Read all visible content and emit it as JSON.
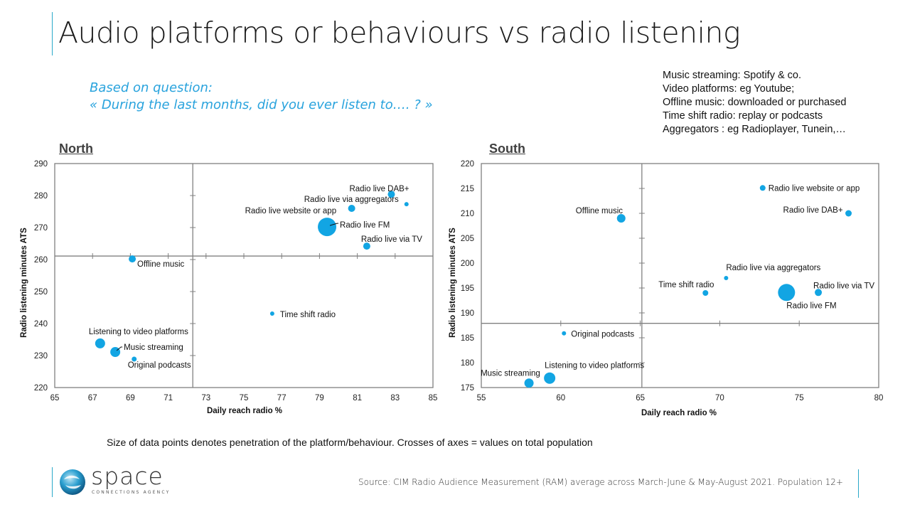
{
  "slide": {
    "title": "Audio platforms or behaviours vs radio listening",
    "subtitle": [
      "Based on question:",
      "« During the last months, did you ever listen to…. ? »"
    ],
    "definitions": [
      "Music streaming: Spotify & co.",
      "Video platforms:  eg Youtube;",
      "Offline music:  downloaded or purchased",
      "Time shift radio:  replay or podcasts",
      "Aggregators : eg Radioplayer, Tunein,…"
    ],
    "footnote": "Size of data points denotes penetration of the platform/behaviour.  Crosses of axes = values on total population",
    "source": "Source: CIM Radio  Audience Measurement  (RAM)  average across March-June  & May-August  2021. Population 12+",
    "logo": {
      "word": "space",
      "tagline": "CONNECTIONS AGENCY"
    },
    "colors": {
      "accent": "#2aa9c9",
      "marker": "#12a5e3",
      "subtitle": "#29a3dd",
      "axis": "#808080"
    }
  },
  "chart_data": [
    {
      "type": "scatter",
      "title": "North",
      "xlabel": "Daily  reach radio %",
      "ylabel": "Radio  listening  minutes  ATS",
      "xlim": [
        65,
        85
      ],
      "ylim": [
        220,
        290
      ],
      "xticks": [
        65,
        67,
        69,
        71,
        73,
        75,
        77,
        79,
        81,
        83,
        85
      ],
      "yticks": [
        220,
        230,
        240,
        250,
        260,
        270,
        280,
        290
      ],
      "grid": false,
      "axis_cross": {
        "x": 72.3,
        "y": 261.1
      },
      "size_meaning": "penetration (relative)",
      "points": [
        {
          "label": "Radio live DAB+",
          "x": 82.8,
          "y": 280.4,
          "size": 5
        },
        {
          "label": "Radio live via aggregators",
          "x": 83.6,
          "y": 277.3,
          "size": 3
        },
        {
          "label": "Radio live website or app",
          "x": 80.7,
          "y": 276.0,
          "size": 5
        },
        {
          "label": "Radio live FM",
          "x": 79.4,
          "y": 270.2,
          "size": 13
        },
        {
          "label": "Radio live via TV",
          "x": 81.5,
          "y": 264.2,
          "size": 5
        },
        {
          "label": "Offline music",
          "x": 69.1,
          "y": 260.2,
          "size": 5
        },
        {
          "label": "Time shift radio",
          "x": 76.5,
          "y": 243.1,
          "size": 3
        },
        {
          "label": "Listening to video platforms",
          "x": 67.4,
          "y": 233.8,
          "size": 7
        },
        {
          "label": "Music streaming",
          "x": 68.2,
          "y": 231.1,
          "size": 7
        },
        {
          "label": "Original podcasts",
          "x": 69.2,
          "y": 228.9,
          "size": 3.5
        }
      ]
    },
    {
      "type": "scatter",
      "title": "South",
      "xlabel": "Daily  reach radio %",
      "ylabel": "Radio  listening  minutes  ATS",
      "xlim": [
        55,
        80
      ],
      "ylim": [
        175,
        220
      ],
      "xticks": [
        55,
        60,
        65,
        70,
        75,
        80
      ],
      "yticks": [
        175,
        180,
        185,
        190,
        195,
        200,
        205,
        210,
        215,
        220
      ],
      "grid": false,
      "axis_cross": {
        "x": 65.1,
        "y": 187.9
      },
      "size_meaning": "penetration (relative)",
      "points": [
        {
          "label": "Radio live website or app",
          "x": 72.7,
          "y": 215.1,
          "size": 4
        },
        {
          "label": "Radio live DAB+",
          "x": 78.1,
          "y": 210.0,
          "size": 4.5
        },
        {
          "label": "Offline music",
          "x": 63.8,
          "y": 209.0,
          "size": 6
        },
        {
          "label": "Radio live via aggregators",
          "x": 70.4,
          "y": 197.0,
          "size": 3
        },
        {
          "label": "Time shift radio",
          "x": 69.1,
          "y": 194.0,
          "size": 4
        },
        {
          "label": "Radio live FM",
          "x": 74.2,
          "y": 194.1,
          "size": 12
        },
        {
          "label": "Radio live via TV",
          "x": 76.2,
          "y": 194.1,
          "size": 5
        },
        {
          "label": "Original podcasts",
          "x": 60.2,
          "y": 185.9,
          "size": 3
        },
        {
          "label": "Listening to video platforms",
          "x": 59.3,
          "y": 176.9,
          "size": 8
        },
        {
          "label": "Music streaming",
          "x": 58.0,
          "y": 175.9,
          "size": 6.5
        }
      ]
    }
  ]
}
